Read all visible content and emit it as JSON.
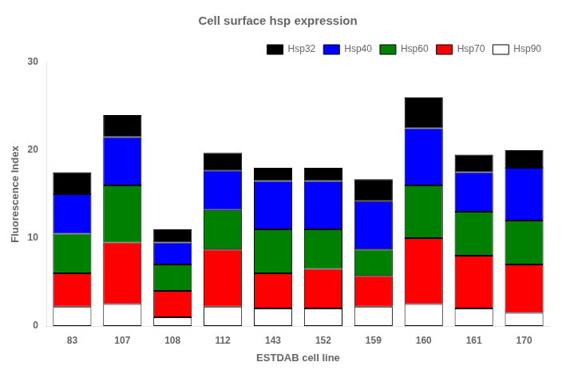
{
  "chart_data": {
    "type": "bar",
    "stacked": true,
    "title": "Cell surface hsp expression",
    "xlabel": "ESTDAB cell line",
    "ylabel": "Fluorescence Index",
    "categories": [
      "83",
      "107",
      "108",
      "112",
      "143",
      "152",
      "159",
      "160",
      "161",
      "170"
    ],
    "series": [
      {
        "name": "Hsp90",
        "color": "#ffffff",
        "values": [
          2.2,
          2.5,
          1.0,
          2.2,
          2.0,
          2.0,
          2.2,
          2.5,
          2.0,
          1.5
        ]
      },
      {
        "name": "Hsp70",
        "color": "#ff0000",
        "values": [
          3.8,
          7.0,
          3.0,
          6.5,
          4.0,
          4.5,
          3.5,
          7.5,
          6.0,
          5.5
        ]
      },
      {
        "name": "Hsp60",
        "color": "#008000",
        "values": [
          4.5,
          6.5,
          3.0,
          4.5,
          5.0,
          4.5,
          3.0,
          6.0,
          5.0,
          5.0
        ]
      },
      {
        "name": "Hsp40",
        "color": "#0000ff",
        "values": [
          4.5,
          5.5,
          2.5,
          4.5,
          5.5,
          5.5,
          5.5,
          6.5,
          4.5,
          6.0
        ]
      },
      {
        "name": "Hsp32",
        "color": "#000000",
        "values": [
          2.5,
          2.5,
          1.5,
          2.0,
          1.5,
          1.5,
          2.5,
          3.5,
          2.0,
          2.0
        ]
      }
    ],
    "ylim": [
      0,
      30
    ],
    "yticks": [
      0,
      10,
      20,
      30
    ],
    "grid": false,
    "legend": "upper right"
  }
}
